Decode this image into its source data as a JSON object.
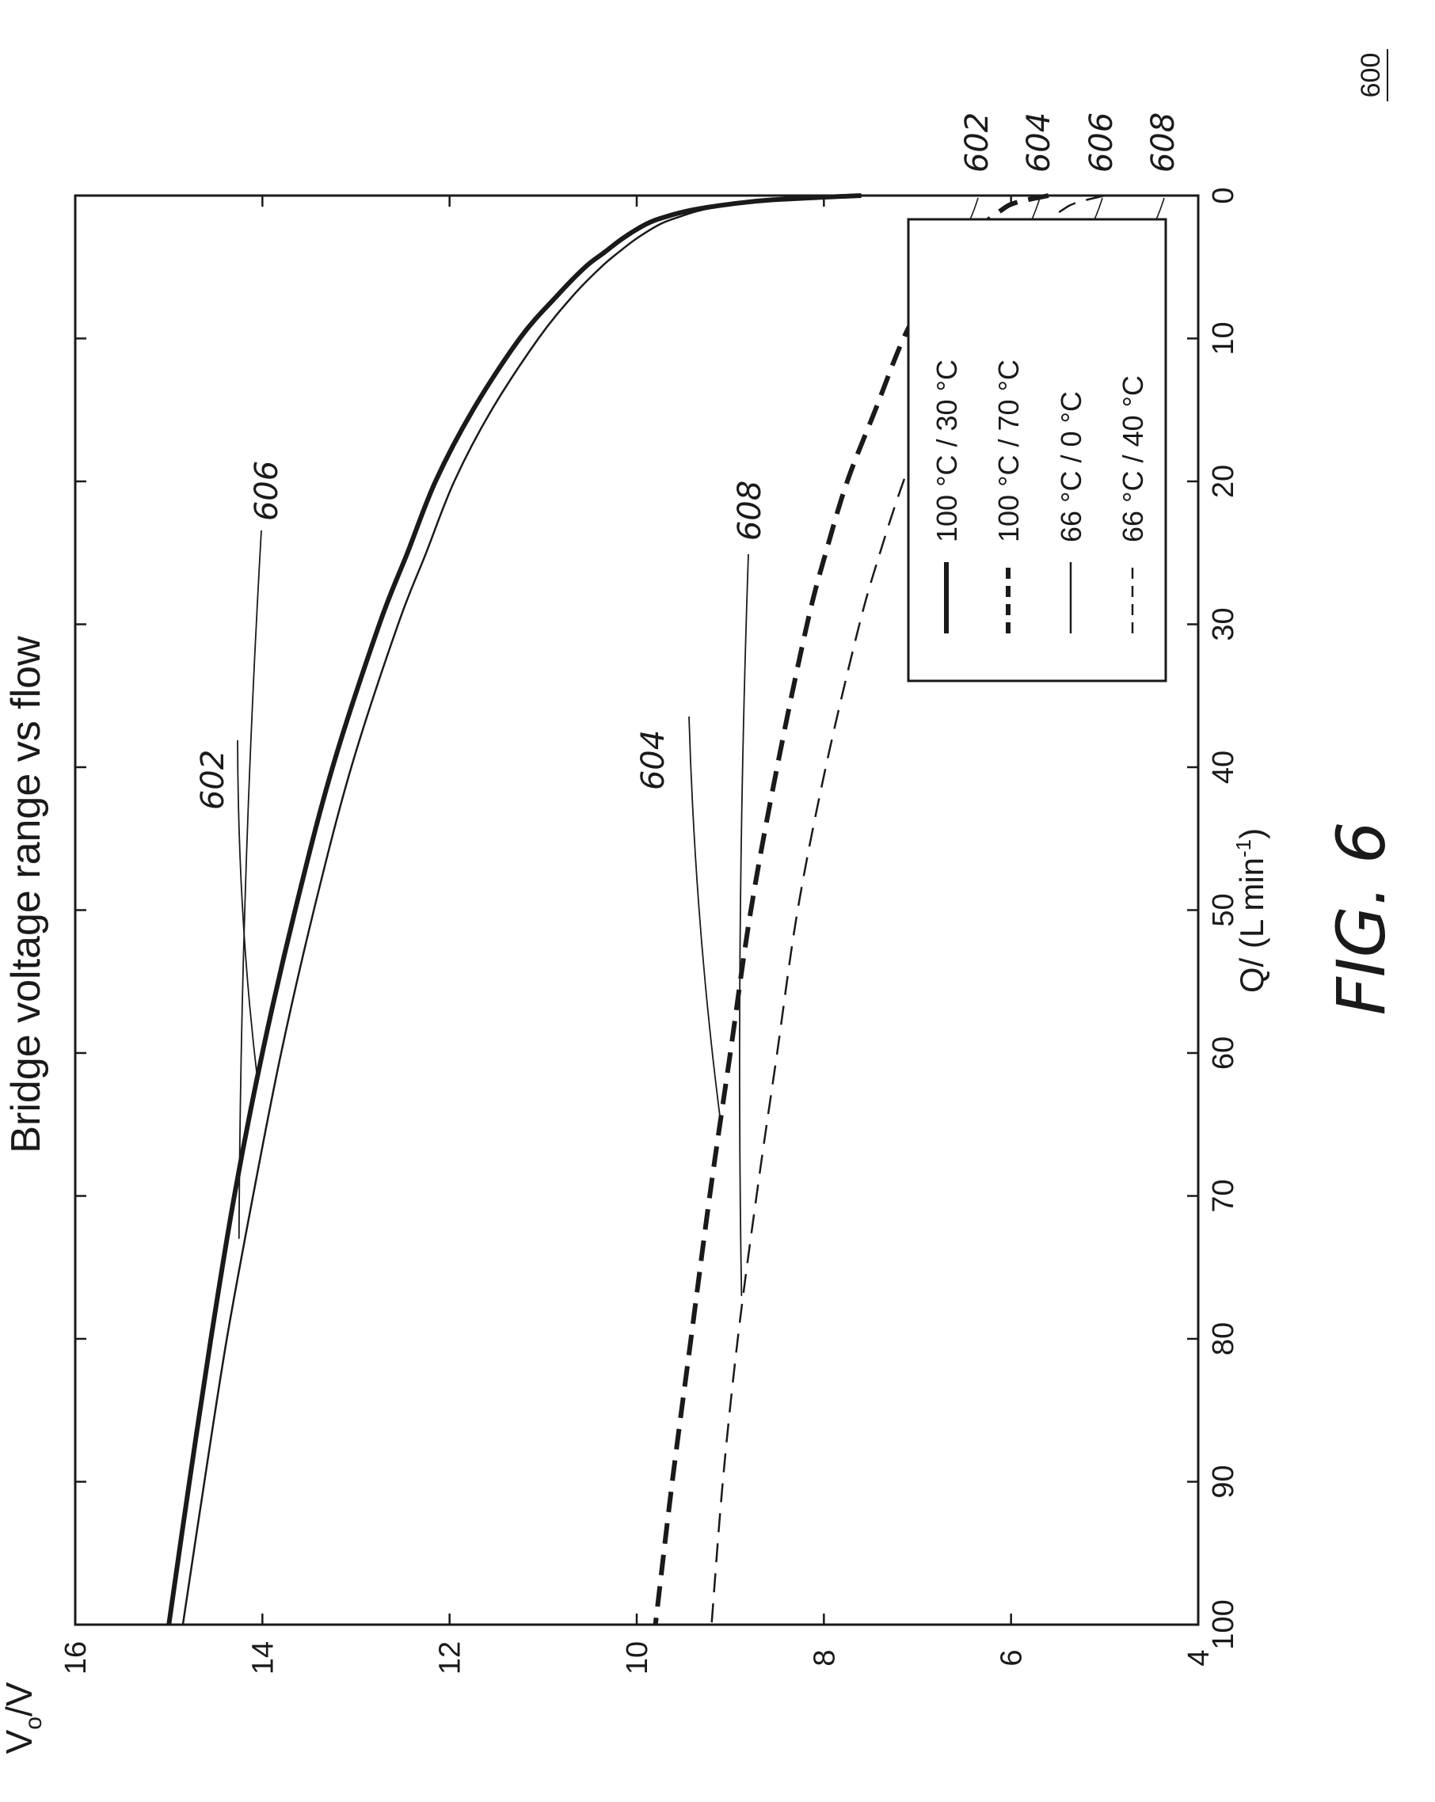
{
  "figure": {
    "reference_number": "600",
    "caption": "FIG. 6"
  },
  "chart_data": {
    "type": "line",
    "title": "Bridge voltage range vs flow",
    "xlabel": "Q/ (L min",
    "xlabel_sup": "-1",
    "xlabel_end": ")",
    "ylabel": "V",
    "ylabel_sub": "o",
    "ylabel_end": "/V",
    "xlim": [
      0,
      100
    ],
    "ylim": [
      4,
      16
    ],
    "x_ticks": [
      0,
      10,
      20,
      30,
      40,
      50,
      60,
      70,
      80,
      90,
      100
    ],
    "y_ticks": [
      4,
      6,
      8,
      10,
      12,
      14,
      16
    ],
    "grid": false,
    "legend_position": "bottom-right",
    "series": [
      {
        "name": "100 °C / 30 °C",
        "ref": "602",
        "style": "solid-thick",
        "color": "#1a1a1a",
        "x": [
          0,
          0.3,
          0.6,
          1,
          1.5,
          2,
          3,
          4,
          5,
          7,
          10,
          15,
          20,
          25,
          30,
          40,
          50,
          60,
          70,
          80,
          90,
          100
        ],
        "y": [
          7.6,
          8.55,
          9.0,
          9.4,
          9.7,
          9.9,
          10.15,
          10.35,
          10.55,
          10.85,
          11.25,
          11.75,
          12.15,
          12.45,
          12.75,
          13.25,
          13.65,
          14.0,
          14.3,
          14.55,
          14.78,
          15.0
        ]
      },
      {
        "name": "100 °C / 70 °C",
        "ref": "604",
        "style": "dashed-thick",
        "color": "#1a1a1a",
        "x": [
          0,
          0.5,
          1,
          2,
          3,
          5,
          7,
          10,
          15,
          20,
          25,
          30,
          40,
          50,
          60,
          70,
          80,
          90,
          100
        ],
        "y": [
          5.6,
          5.95,
          6.1,
          6.3,
          6.45,
          6.7,
          6.9,
          7.15,
          7.45,
          7.75,
          7.98,
          8.18,
          8.5,
          8.78,
          9.0,
          9.22,
          9.42,
          9.62,
          9.8
        ]
      },
      {
        "name": "66 °C / 0 °C",
        "ref": "606",
        "style": "solid-thin",
        "color": "#1a1a1a",
        "x": [
          0,
          0.3,
          0.6,
          1,
          1.5,
          2,
          3,
          4,
          5,
          7,
          10,
          15,
          20,
          25,
          30,
          40,
          50,
          60,
          70,
          80,
          90,
          100
        ],
        "y": [
          7.6,
          8.45,
          8.9,
          9.3,
          9.55,
          9.75,
          10.0,
          10.2,
          10.38,
          10.68,
          11.05,
          11.55,
          11.95,
          12.25,
          12.55,
          13.05,
          13.45,
          13.8,
          14.1,
          14.38,
          14.62,
          14.85
        ]
      },
      {
        "name": "66 °C / 40 °C",
        "ref": "608",
        "style": "dashed-thin",
        "color": "#1a1a1a",
        "x": [
          0,
          0.5,
          1,
          2,
          3,
          5,
          7,
          10,
          15,
          20,
          25,
          30,
          40,
          50,
          60,
          70,
          80,
          90,
          100
        ],
        "y": [
          5.0,
          5.3,
          5.45,
          5.65,
          5.8,
          6.05,
          6.25,
          6.5,
          6.85,
          7.15,
          7.4,
          7.62,
          7.98,
          8.28,
          8.5,
          8.72,
          8.92,
          9.08,
          9.2
        ]
      }
    ]
  }
}
